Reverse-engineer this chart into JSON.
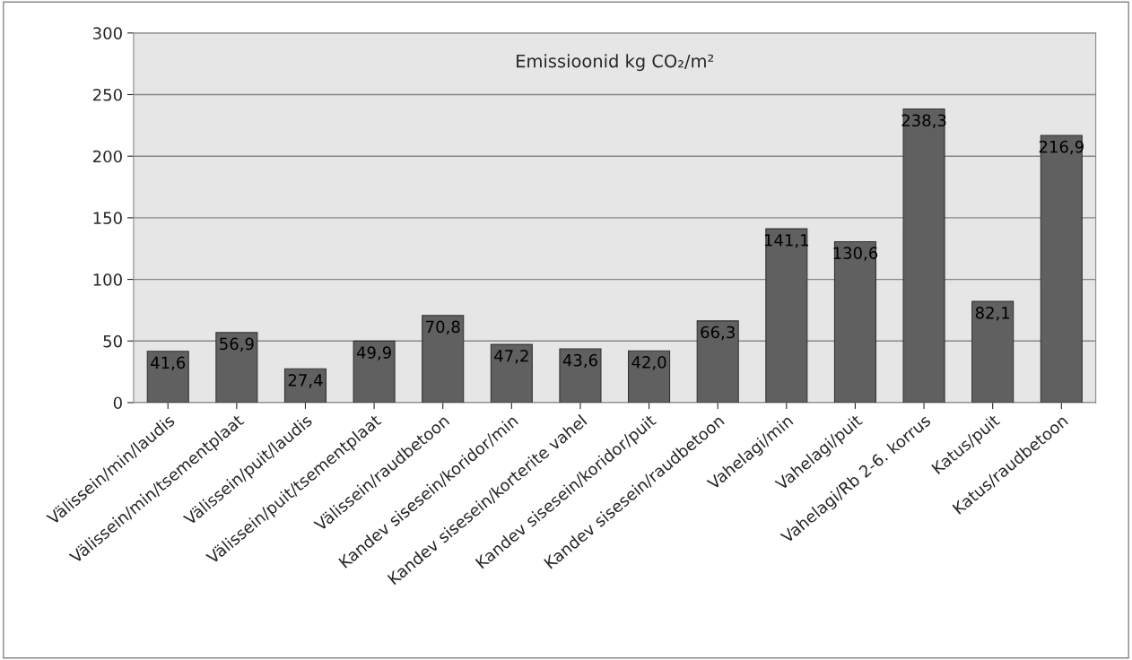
{
  "chart_data": {
    "type": "bar",
    "title": "Emissioonid kg CO₂/m²",
    "categories": [
      "Välissein/min/laudis",
      "Välissein/min/tsementplaat",
      "Välissein/puit/laudis",
      "Välissein/puit/tsementplaat",
      "Välissein/raudbetoon",
      "Kandev sisesein/koridor/min",
      "Kandev sisesein/korterite vahel",
      "Kandev sisesein/koridor/puit",
      "Kandev sisesein/raudbetoon",
      "Vahelagi/min",
      "Vahelagi/puit",
      "Vahelagi/Rb 2-6. korrus",
      "Katus/puit",
      "Katus/raudbetoon"
    ],
    "values": [
      41.6,
      56.9,
      27.4,
      49.9,
      70.8,
      47.2,
      43.6,
      42.0,
      66.3,
      141.1,
      130.6,
      238.3,
      82.1,
      216.9
    ],
    "value_labels": [
      "41,6",
      "56,9",
      "27,4",
      "49,9",
      "70,8",
      "47,2",
      "43,6",
      "42,0",
      "66,3",
      "141,1",
      "130,6",
      "238,3",
      "82,1",
      "216,9"
    ],
    "color": "#606060",
    "ylim": [
      0,
      300
    ],
    "yticks": [
      0,
      50,
      100,
      150,
      200,
      250,
      300
    ],
    "grid": "y",
    "legend": false
  }
}
